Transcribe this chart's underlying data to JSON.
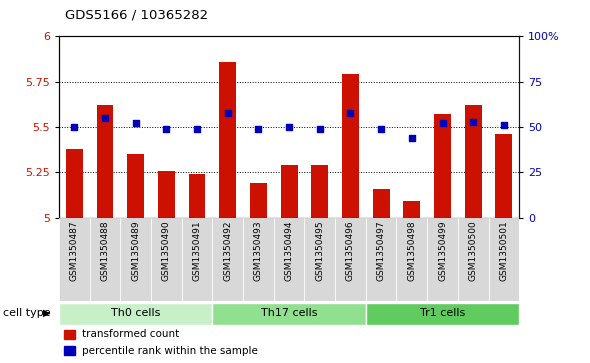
{
  "title": "GDS5166 / 10365282",
  "samples": [
    "GSM1350487",
    "GSM1350488",
    "GSM1350489",
    "GSM1350490",
    "GSM1350491",
    "GSM1350492",
    "GSM1350493",
    "GSM1350494",
    "GSM1350495",
    "GSM1350496",
    "GSM1350497",
    "GSM1350498",
    "GSM1350499",
    "GSM1350500",
    "GSM1350501"
  ],
  "bar_values": [
    5.38,
    5.62,
    5.35,
    5.26,
    5.24,
    5.86,
    5.19,
    5.29,
    5.29,
    5.79,
    5.16,
    5.09,
    5.57,
    5.62,
    5.46
  ],
  "percentile_values": [
    50,
    55,
    52,
    49,
    49,
    58,
    49,
    50,
    49,
    58,
    49,
    44,
    52,
    53,
    51
  ],
  "bar_bottom": 5.0,
  "ylim_left": [
    5.0,
    6.0
  ],
  "ylim_right": [
    0,
    100
  ],
  "yticks_left": [
    5.0,
    5.25,
    5.5,
    5.75,
    6.0
  ],
  "ytick_labels_left": [
    "5",
    "5.25",
    "5.5",
    "5.75",
    "6"
  ],
  "yticks_right": [
    0,
    25,
    50,
    75,
    100
  ],
  "ytick_labels_right": [
    "0",
    "25",
    "50",
    "75",
    "100%"
  ],
  "cell_groups": [
    {
      "label": "Th0 cells",
      "start": 0,
      "end": 5,
      "color": "#c8f0c8"
    },
    {
      "label": "Th17 cells",
      "start": 5,
      "end": 10,
      "color": "#90e090"
    },
    {
      "label": "Tr1 cells",
      "start": 10,
      "end": 15,
      "color": "#60cc60"
    }
  ],
  "bar_color": "#cc1100",
  "dot_color": "#0000bb",
  "bar_width": 0.55,
  "plot_bg": "#ffffff",
  "sample_bg": "#d8d8d8",
  "cell_type_label": "cell type",
  "legend_items": [
    {
      "label": "transformed count",
      "color": "#cc1100"
    },
    {
      "label": "percentile rank within the sample",
      "color": "#0000bb"
    }
  ]
}
